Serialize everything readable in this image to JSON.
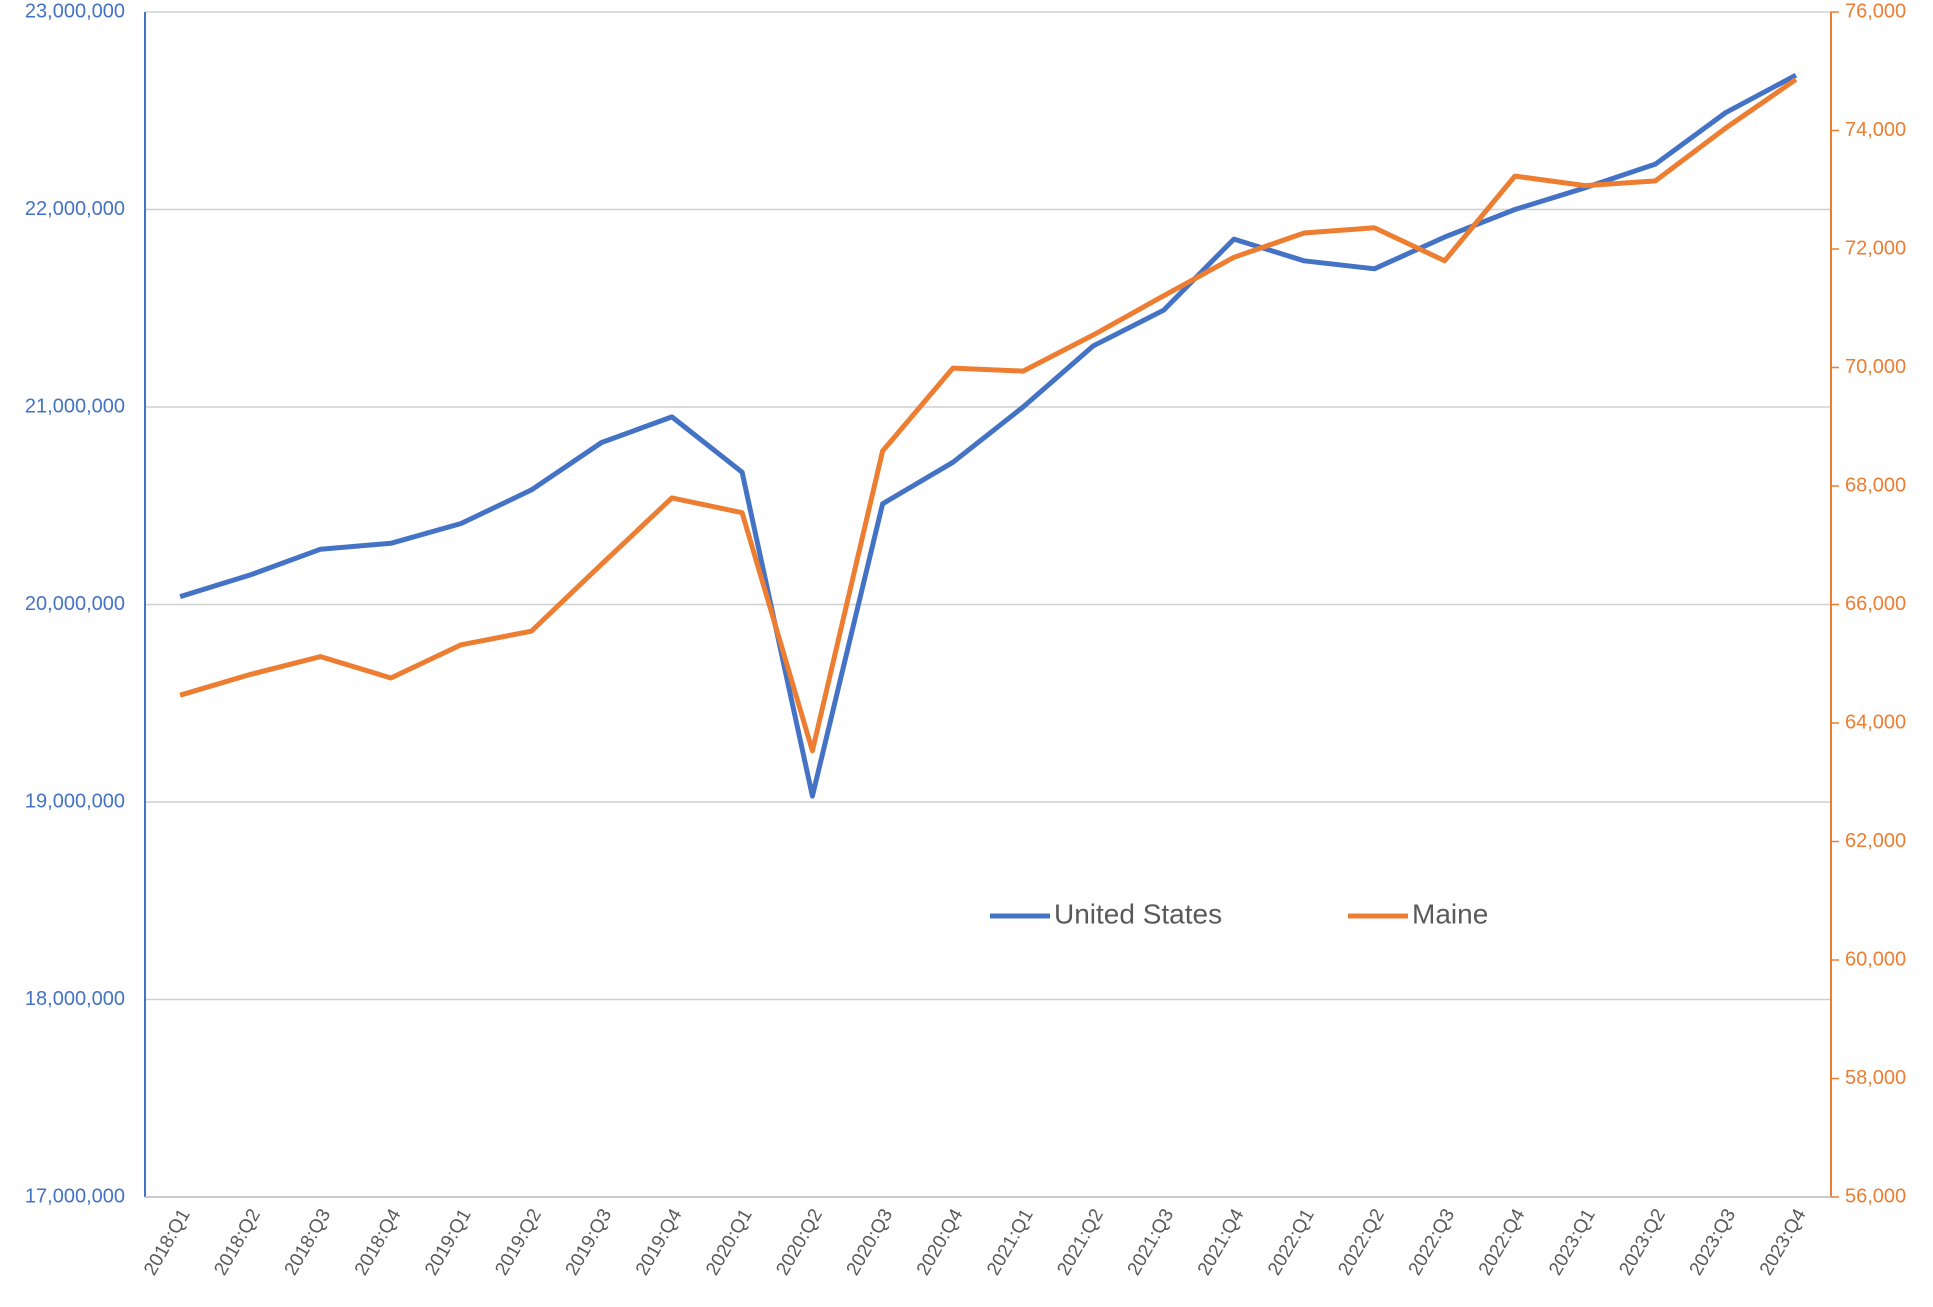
{
  "chart_data": {
    "type": "line",
    "categories": [
      "2018:Q1",
      "2018:Q2",
      "2018:Q3",
      "2018:Q4",
      "2019:Q1",
      "2019:Q2",
      "2019:Q3",
      "2019:Q4",
      "2020:Q1",
      "2020:Q2",
      "2020:Q3",
      "2020:Q4",
      "2021:Q1",
      "2021:Q2",
      "2021:Q3",
      "2021:Q4",
      "2022:Q1",
      "2022:Q2",
      "2022:Q3",
      "2022:Q4",
      "2023:Q1",
      "2023:Q2",
      "2023:Q3",
      "2023:Q4"
    ],
    "series": [
      {
        "name": "United States",
        "color": "#4472c4",
        "axis": "y",
        "values": [
          20040000,
          20150000,
          20280000,
          20310000,
          20410000,
          20580000,
          20820000,
          20950000,
          20670000,
          19030000,
          20510000,
          20720000,
          21000000,
          21310000,
          21490000,
          21850000,
          21740000,
          21700000,
          21860000,
          22000000,
          22110000,
          22230000,
          22490000,
          22680000
        ]
      },
      {
        "name": "Maine",
        "color": "#ed7d31",
        "axis": "y2",
        "values": [
          64470,
          64820,
          65120,
          64760,
          65320,
          65550,
          66680,
          67800,
          67550,
          63530,
          68590,
          69990,
          69940,
          70550,
          71210,
          71860,
          72270,
          72360,
          71800,
          73230,
          73070,
          73150,
          74040,
          74860
        ]
      }
    ],
    "ylim": [
      17000000,
      23000000
    ],
    "yticks": [
      {
        "value": 17000000,
        "label": "17,000,000"
      },
      {
        "value": 18000000,
        "label": "18,000,000"
      },
      {
        "value": 19000000,
        "label": "19,000,000"
      },
      {
        "value": 20000000,
        "label": "20,000,000"
      },
      {
        "value": 21000000,
        "label": "21,000,000"
      },
      {
        "value": 22000000,
        "label": "22,000,000"
      },
      {
        "value": 23000000,
        "label": "23,000,000"
      }
    ],
    "y2lim": [
      56000,
      76000
    ],
    "y2ticks": [
      {
        "value": 56000,
        "label": "56,000"
      },
      {
        "value": 58000,
        "label": "58,000"
      },
      {
        "value": 60000,
        "label": "60,000"
      },
      {
        "value": 62000,
        "label": "62,000"
      },
      {
        "value": 64000,
        "label": "64,000"
      },
      {
        "value": 66000,
        "label": "66,000"
      },
      {
        "value": 68000,
        "label": "68,000"
      },
      {
        "value": 70000,
        "label": "70,000"
      },
      {
        "value": 72000,
        "label": "72,000"
      },
      {
        "value": 74000,
        "label": "74,000"
      },
      {
        "value": 76000,
        "label": "76,000"
      }
    ],
    "grid": true,
    "legend": "center"
  }
}
